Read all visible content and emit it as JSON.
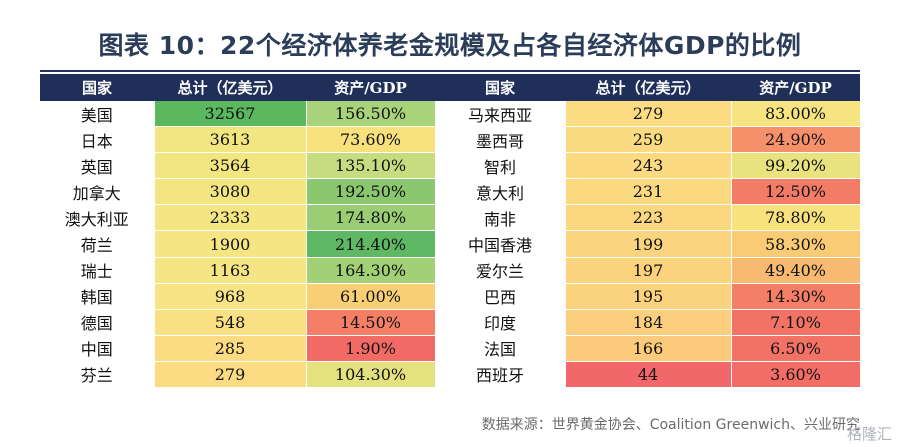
{
  "title": "图表 10：22个经济体养老金规模及占各自经济体GDP的比例",
  "headers": [
    "国家",
    "总计（亿美元）",
    "资产/GDP",
    "国家",
    "总计（亿美元）",
    "资产/GDP"
  ],
  "left_rows": [
    {
      "country": "美国",
      "total": "32567",
      "ratio": "156.50%",
      "total_color": "#5cb85f",
      "ratio_color": "#a9d37a"
    },
    {
      "country": "日本",
      "total": "3613",
      "ratio": "73.60%",
      "total_color": "#f2e680",
      "ratio_color": "#f8e07d"
    },
    {
      "country": "英国",
      "total": "3564",
      "ratio": "135.10%",
      "total_color": "#f2e680",
      "ratio_color": "#c5dc80"
    },
    {
      "country": "加拿大",
      "total": "3080",
      "ratio": "192.50%",
      "total_color": "#f3e681",
      "ratio_color": "#8ac76e"
    },
    {
      "country": "澳大利亚",
      "total": "2333",
      "ratio": "174.80%",
      "total_color": "#f4e683",
      "ratio_color": "#9acd74"
    },
    {
      "country": "荷兰",
      "total": "1900",
      "ratio": "214.40%",
      "total_color": "#f5e683",
      "ratio_color": "#5fb863"
    },
    {
      "country": "瑞士",
      "total": "1163",
      "ratio": "164.30%",
      "total_color": "#f6e584",
      "ratio_color": "#a2d077"
    },
    {
      "country": "韩国",
      "total": "968",
      "ratio": "61.00%",
      "total_color": "#f8e484",
      "ratio_color": "#f9cf75"
    },
    {
      "country": "德国",
      "total": "548",
      "ratio": "14.50%",
      "total_color": "#fae084",
      "ratio_color": "#f47f66"
    },
    {
      "country": "中国",
      "total": "285",
      "ratio": "1.90%",
      "total_color": "#fbdc82",
      "ratio_color": "#f26a66"
    },
    {
      "country": "芬兰",
      "total": "279",
      "ratio": "104.30%",
      "total_color": "#fbdc82",
      "ratio_color": "#e4e27f"
    }
  ],
  "right_rows": [
    {
      "country": "马来西亚",
      "total": "279",
      "ratio": "83.00%",
      "total_color": "#fbdc82",
      "ratio_color": "#f5e480"
    },
    {
      "country": "墨西哥",
      "total": "259",
      "ratio": "24.90%",
      "total_color": "#fbdb82",
      "ratio_color": "#f6906b"
    },
    {
      "country": "智利",
      "total": "243",
      "ratio": "99.20%",
      "total_color": "#fbda81",
      "ratio_color": "#e8e27f"
    },
    {
      "country": "意大利",
      "total": "231",
      "ratio": "12.50%",
      "total_color": "#fbd981",
      "ratio_color": "#f37c66"
    },
    {
      "country": "南非",
      "total": "223",
      "ratio": "78.80%",
      "total_color": "#fbd880",
      "ratio_color": "#f8e27e"
    },
    {
      "country": "中国香港",
      "total": "199",
      "ratio": "58.30%",
      "total_color": "#fbd47f",
      "ratio_color": "#f9cb74"
    },
    {
      "country": "爱尔兰",
      "total": "197",
      "ratio": "49.40%",
      "total_color": "#fbd37f",
      "ratio_color": "#f8ba70"
    },
    {
      "country": "巴西",
      "total": "195",
      "ratio": "14.30%",
      "total_color": "#fbd27e",
      "ratio_color": "#f47f66"
    },
    {
      "country": "印度",
      "total": "184",
      "ratio": "7.10%",
      "total_color": "#fbcf7d",
      "ratio_color": "#f27366"
    },
    {
      "country": "法国",
      "total": "166",
      "ratio": "6.50%",
      "total_color": "#fbca7b",
      "ratio_color": "#f27266"
    },
    {
      "country": "西班牙",
      "total": "44",
      "ratio": "3.60%",
      "total_color": "#f2686a",
      "ratio_color": "#f26d66"
    }
  ],
  "source": "数据来源：世界黄金协会、Coalition Greenwich、兴业研究",
  "watermark": "格隆汇"
}
